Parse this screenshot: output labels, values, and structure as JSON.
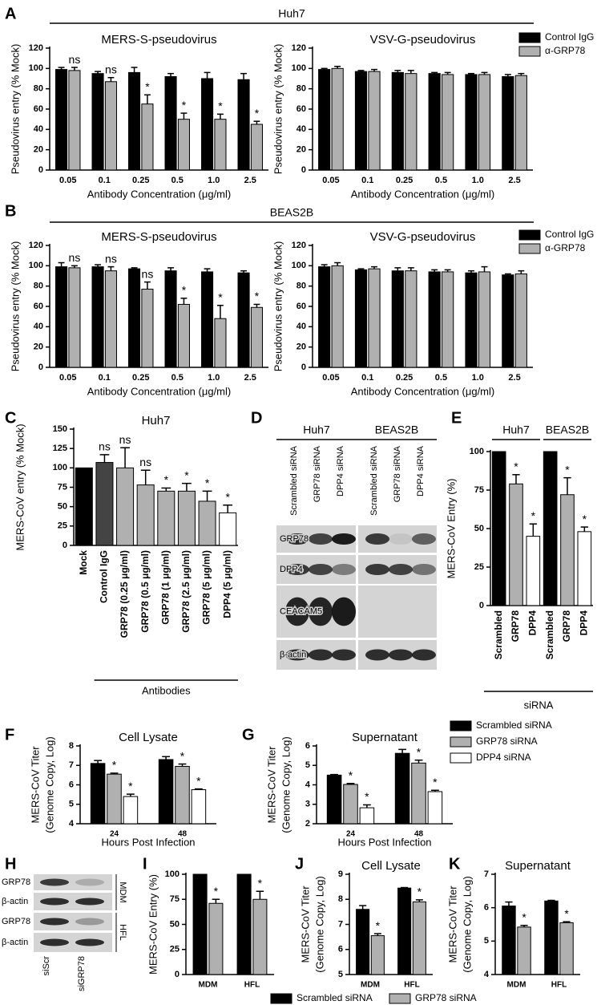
{
  "sections": [
    {
      "panel": "A",
      "title": "Huh7"
    },
    {
      "panel": "B",
      "title": "BEAS2B"
    }
  ],
  "chart_data": [
    {
      "type": "bar",
      "title": "MERS-S-pseudovirus",
      "ylabel": "Pseudovirus entry (% Mock)",
      "xlabel": "Antibody Concentration (μg/ml)",
      "categories": [
        "0.05",
        "0.1",
        "0.25",
        "0.5",
        "1.0",
        "2.5"
      ],
      "series": [
        {
          "color": "#000000",
          "values": [
            99,
            95,
            96,
            92,
            90,
            89
          ],
          "errors": [
            2,
            2,
            5,
            3,
            6,
            6
          ]
        },
        {
          "color": "#b0b0b0",
          "values": [
            98,
            87,
            65,
            50,
            50,
            45
          ],
          "errors": [
            3,
            4,
            9,
            6,
            5,
            3
          ],
          "annotations": [
            "ns",
            "ns",
            "*",
            "*",
            "*",
            "*"
          ]
        }
      ],
      "ylim": [
        0,
        120
      ],
      "yticks": [
        0,
        20,
        40,
        60,
        80,
        100,
        120
      ]
    },
    {
      "type": "bar",
      "title": "VSV-G-pseudovirus",
      "ylabel": "Pseudovirus entry (% Mock)",
      "xlabel": "Antibody Concentration (μg/ml)",
      "categories": [
        "0.05",
        "0.1",
        "0.25",
        "0.5",
        "1.0",
        "2.5"
      ],
      "series": [
        {
          "name": "Control IgG",
          "color": "#000000",
          "values": [
            99,
            97,
            96,
            95,
            94,
            92
          ],
          "errors": [
            1,
            1,
            2,
            1,
            1,
            2
          ]
        },
        {
          "name": "α-GRP78",
          "color": "#b0b0b0",
          "values": [
            100,
            97,
            95,
            94,
            94,
            93
          ],
          "errors": [
            2,
            2,
            3,
            2,
            2,
            2
          ]
        }
      ],
      "ylim": [
        0,
        120
      ],
      "yticks": [
        0,
        20,
        40,
        60,
        80,
        100,
        120
      ]
    },
    {
      "type": "bar",
      "title": "MERS-S-pseudovirus",
      "ylabel": "Pseudovirus entry (% Mock)",
      "xlabel": "Antibody Concentration (μg/ml)",
      "categories": [
        "0.05",
        "0.1",
        "0.25",
        "0.5",
        "1.0",
        "2.5"
      ],
      "series": [
        {
          "color": "#000000",
          "values": [
            99,
            99,
            97,
            95,
            94,
            93
          ],
          "errors": [
            4,
            2,
            1,
            3,
            3,
            2
          ]
        },
        {
          "color": "#b0b0b0",
          "values": [
            98,
            95,
            77,
            62,
            48,
            59
          ],
          "errors": [
            2,
            4,
            7,
            6,
            13,
            3
          ],
          "annotations": [
            "ns",
            "ns",
            "ns",
            "*",
            "*",
            "*"
          ]
        }
      ],
      "ylim": [
        0,
        120
      ],
      "yticks": [
        0,
        20,
        40,
        60,
        80,
        100,
        120
      ]
    },
    {
      "type": "bar",
      "title": "VSV-G-pseudovirus",
      "ylabel": "Pseudovirus entry (% Mock)",
      "xlabel": "Antibody Concentration (μg/ml)",
      "categories": [
        "0.05",
        "0.1",
        "0.25",
        "0.5",
        "1.0",
        "2.5"
      ],
      "series": [
        {
          "name": "Control IgG",
          "color": "#000000",
          "values": [
            99,
            96,
            95,
            94,
            93,
            91
          ],
          "errors": [
            2,
            1,
            3,
            2,
            2,
            1
          ]
        },
        {
          "name": "α-GRP78",
          "color": "#b0b0b0",
          "values": [
            100,
            97,
            95,
            94,
            94,
            92
          ],
          "errors": [
            3,
            2,
            3,
            2,
            5,
            3
          ]
        }
      ],
      "ylim": [
        0,
        120
      ],
      "yticks": [
        0,
        20,
        40,
        60,
        80,
        100,
        120
      ]
    },
    {
      "type": "bar",
      "panel": "C",
      "title": "Huh7",
      "ylabel": "MERS-CoV entry (% Mock)",
      "xlabel": "Antibodies",
      "categories": [
        "Mock",
        "Control IgG",
        "GRP78 (0.25 μg/ml)",
        "GRP78 (0.5 μg/ml)",
        "GRP78 (1 μg/ml)",
        "GRP78 (2.5 μg/ml)",
        "GRP78 (5 μg/ml)",
        "DPP4 (5 μg/ml)"
      ],
      "values": [
        100,
        107,
        100,
        78,
        70,
        70,
        57,
        42
      ],
      "errors": [
        null,
        10,
        26,
        19,
        4,
        10,
        13,
        10
      ],
      "annotations": [
        null,
        "ns",
        "ns",
        "ns",
        "*",
        "*",
        "*",
        "*"
      ],
      "colors": [
        "#000000",
        "#444444",
        "#b0b0b0",
        "#b0b0b0",
        "#b0b0b0",
        "#b0b0b0",
        "#b0b0b0",
        "#ffffff"
      ],
      "ylim": [
        0,
        150
      ],
      "yticks": [
        0,
        25,
        50,
        75,
        100,
        125,
        150
      ]
    },
    {
      "type": "bar",
      "panel": "E",
      "ylabel": "MERS-CoV Entry (%)",
      "xlabel": "siRNA",
      "groups": [
        {
          "name": "Huh7",
          "categories": [
            "Scrambled",
            "GRP78",
            "DPP4"
          ],
          "values": [
            100,
            79,
            45
          ],
          "errors": [
            null,
            6,
            8
          ],
          "annotations": [
            null,
            "*",
            "*"
          ]
        },
        {
          "name": "BEAS2B",
          "categories": [
            "Scrambled",
            "GRP78",
            "DPP4"
          ],
          "values": [
            100,
            72,
            48
          ],
          "errors": [
            null,
            11,
            3
          ],
          "annotations": [
            null,
            "*",
            "*"
          ]
        }
      ],
      "colors": [
        "#000000",
        "#b0b0b0",
        "#ffffff"
      ],
      "ylim": [
        0,
        100
      ],
      "yticks": [
        0,
        25,
        50,
        75,
        100
      ]
    },
    {
      "type": "bar",
      "panel": "F",
      "title": "Cell Lysate",
      "ylabel": [
        "MERS-CoV Titer",
        "(Genome Copy, Log)"
      ],
      "xlabel": "Hours Post Infection",
      "categories": [
        "24",
        "48"
      ],
      "series": [
        {
          "color": "#000000",
          "values": [
            7.1,
            7.3
          ],
          "errors": [
            0.15,
            0.15
          ]
        },
        {
          "color": "#b0b0b0",
          "values": [
            6.55,
            6.95
          ],
          "errors": [
            0.05,
            0.12
          ],
          "annotations": [
            "*",
            "*"
          ]
        },
        {
          "color": "#ffffff",
          "values": [
            5.4,
            5.75
          ],
          "errors": [
            0.12,
            0.04
          ],
          "annotations": [
            "*",
            "*"
          ]
        }
      ],
      "ylim": [
        4,
        8
      ],
      "yticks": [
        4,
        5,
        6,
        7,
        8
      ]
    },
    {
      "type": "bar",
      "panel": "G",
      "title": "Supernatant",
      "ylabel": [
        "MERS-CoV Titer",
        "(Genome Copy, Log)"
      ],
      "xlabel": "Hours Post Infection",
      "categories": [
        "24",
        "48"
      ],
      "series": [
        {
          "name": "Scrambled siRNA",
          "color": "#000000",
          "values": [
            4.5,
            5.62
          ],
          "errors": [
            0.03,
            0.2
          ]
        },
        {
          "name": "GRP78 siRNA",
          "color": "#b0b0b0",
          "values": [
            4.02,
            5.12
          ],
          "errors": [
            0.05,
            0.15
          ],
          "annotations": [
            "*",
            "*"
          ]
        },
        {
          "name": "DPP4 siRNA",
          "color": "#ffffff",
          "values": [
            2.82,
            3.65
          ],
          "errors": [
            0.15,
            0.07
          ],
          "annotations": [
            "*",
            "*"
          ]
        }
      ],
      "ylim": [
        2,
        6
      ],
      "yticks": [
        2,
        3,
        4,
        5,
        6
      ]
    },
    {
      "type": "bar",
      "panel": "I",
      "ylabel": "MERS-CoV Entry (%)",
      "categories": [
        "MDM",
        "HFL"
      ],
      "series": [
        {
          "name": "Scrambled siRNA",
          "color": "#000000",
          "values": [
            100,
            100
          ],
          "errors": [
            null,
            null
          ]
        },
        {
          "name": "GRP78 siRNA",
          "color": "#b0b0b0",
          "values": [
            71,
            75
          ],
          "errors": [
            4,
            8
          ],
          "annotations": [
            "*",
            "*"
          ]
        }
      ],
      "ylim": [
        0,
        100
      ],
      "yticks": [
        0,
        25,
        50,
        75,
        100
      ]
    },
    {
      "type": "bar",
      "panel": "J",
      "title": "Cell Lysate",
      "ylabel": [
        "MERS-CoV Titer",
        "(Genome Copy, Log)"
      ],
      "categories": [
        "MDM",
        "HFL"
      ],
      "series": [
        {
          "color": "#000000",
          "values": [
            7.6,
            8.45
          ],
          "errors": [
            0.15,
            0.02
          ]
        },
        {
          "color": "#b0b0b0",
          "values": [
            6.55,
            7.9
          ],
          "errors": [
            0.08,
            0.08
          ],
          "annotations": [
            "*",
            "*"
          ]
        }
      ],
      "ylim": [
        5,
        9
      ],
      "yticks": [
        5,
        6,
        7,
        8,
        9
      ]
    },
    {
      "type": "bar",
      "panel": "K",
      "title": "Supernatant",
      "ylabel": [
        "MERS-CoV Titer",
        "(Genome Copy, Log)"
      ],
      "categories": [
        "MDM",
        "HFL"
      ],
      "series": [
        {
          "color": "#000000",
          "values": [
            6.05,
            6.2
          ],
          "errors": [
            0.12,
            0.02
          ]
        },
        {
          "color": "#b0b0b0",
          "values": [
            5.42,
            5.55
          ],
          "errors": [
            0.05,
            0.03
          ],
          "annotations": [
            "*",
            "*"
          ]
        }
      ],
      "ylim": [
        4,
        7
      ],
      "yticks": [
        4,
        5,
        6,
        7
      ]
    }
  ],
  "blots": [
    {
      "panel": "D",
      "groups": [
        {
          "name": "Huh7",
          "lanes": [
            "Scrambled siRNA",
            "GRP78 siRNA",
            "DPP4 siRNA"
          ]
        },
        {
          "name": "BEAS2B",
          "lanes": [
            "Scrambled siRNA",
            "GRP78 siRNA",
            "DPP4 siRNA"
          ]
        }
      ],
      "rows": [
        "GRP78",
        "DPP4",
        "CEACAM5",
        "β-actin"
      ]
    },
    {
      "panel": "H",
      "lanes": [
        "siScr",
        "siGRP78"
      ],
      "rows": [
        "GRP78",
        "β-actin",
        "GRP78",
        "β-actin"
      ],
      "groups": [
        "MDM",
        "HFL"
      ]
    }
  ]
}
